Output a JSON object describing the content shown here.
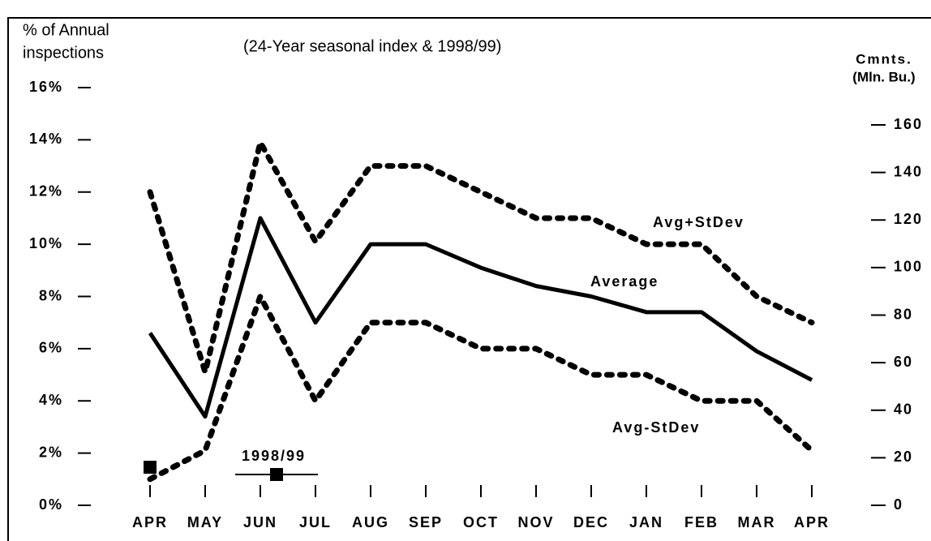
{
  "chart_data": {
    "type": "line",
    "subtitle": "(24-Year seasonal index & 1998/99)",
    "y_label": [
      "% of Annual",
      "inspections"
    ],
    "y2_label": [
      "Cmnts.",
      "(Mln. Bu.)"
    ],
    "categories": [
      "APR",
      "MAY",
      "JUN",
      "JUL",
      "AUG",
      "SEP",
      "OCT",
      "NOV",
      "DEC",
      "JAN",
      "FEB",
      "MAR",
      "APR"
    ],
    "ylim": [
      0,
      16
    ],
    "yticks": [
      {
        "value": 0,
        "label": "0%"
      },
      {
        "value": 2,
        "label": "2%"
      },
      {
        "value": 4,
        "label": "4%"
      },
      {
        "value": 6,
        "label": "6%"
      },
      {
        "value": 8,
        "label": "8%"
      },
      {
        "value": 10,
        "label": "10%"
      },
      {
        "value": 12,
        "label": "12%"
      },
      {
        "value": 14,
        "label": "14%"
      },
      {
        "value": 16,
        "label": "16%"
      }
    ],
    "y2lim": [
      0,
      160
    ],
    "y2ticks": [
      0,
      20,
      40,
      60,
      80,
      100,
      120,
      140,
      160
    ],
    "series": [
      {
        "name": "Avg+StDev",
        "color": "#000000",
        "dashed": true,
        "values": [
          12.0,
          5.1,
          13.9,
          10.1,
          13.0,
          13.0,
          12.0,
          11.0,
          11.0,
          10.0,
          10.0,
          8.0,
          7.0
        ]
      },
      {
        "name": "Average",
        "color": "#000000",
        "dashed": false,
        "values": [
          6.6,
          3.4,
          11.0,
          7.0,
          10.0,
          10.0,
          9.1,
          8.4,
          8.0,
          7.4,
          7.4,
          5.9,
          4.8
        ]
      },
      {
        "name": "Avg-StDev",
        "color": "#000000",
        "dashed": true,
        "values": [
          1.0,
          2.1,
          8.0,
          4.0,
          7.0,
          7.0,
          6.0,
          6.0,
          5.0,
          5.0,
          4.0,
          4.0,
          2.1
        ]
      },
      {
        "name": "1998/99",
        "color": "#000000",
        "marker": "square",
        "axis": "y2",
        "values": [
          16,
          null,
          null,
          null,
          null,
          null,
          null,
          null,
          null,
          null,
          null,
          null,
          null
        ]
      }
    ]
  }
}
